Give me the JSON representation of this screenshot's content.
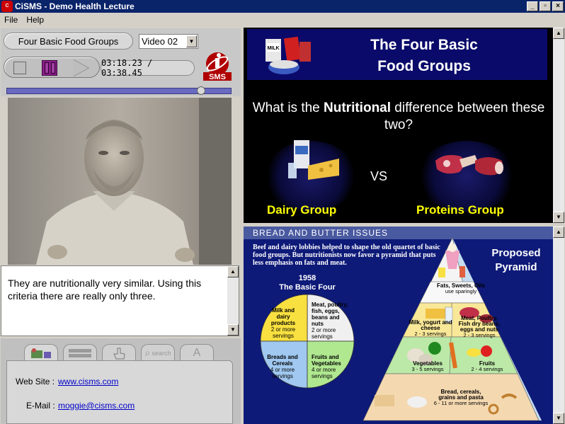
{
  "window": {
    "title": "CiSMS - Demo Health Lecture",
    "logo_text": "CiSMS"
  },
  "menu": [
    {
      "label": "File"
    },
    {
      "label": "Help"
    }
  ],
  "player": {
    "lecture_title": "Four Basic Food Groups",
    "video_select": "Video 02",
    "time": "03:18.23 / 03:38.45",
    "progress": 0.88,
    "logo_text": "SMS"
  },
  "caption": "They are nutritionally very similar. Using this criteria there are really only three.",
  "tabs": [
    {
      "icon": "contact-card-icon",
      "active": true
    },
    {
      "icon": "notes-list-icon",
      "active": false
    },
    {
      "icon": "pointer-hand-icon",
      "active": false
    },
    {
      "icon": "search-icon",
      "label": "search",
      "active": false
    },
    {
      "icon": "font-icon",
      "label": "A",
      "active": false
    }
  ],
  "contact": {
    "website_label": "Web Site :",
    "website": "www.cisms.com",
    "email_label": "E-Mail :",
    "email": "moggie@cisms.com"
  },
  "slide": {
    "title_line1": "The Four Basic",
    "title_line2": "Food Groups",
    "q_pre": "What is the ",
    "q_bold": "Nutritional",
    "q_post": " difference between these two?",
    "vs": "VS",
    "left_group": "Dairy Group",
    "right_group": "Proteins Group"
  },
  "article": {
    "heading": "BREAD AND BUTTER ISSUES",
    "intro": "Beef and dairy lobbies helped to shape the old quartet of basic food groups. But nutritionists now favor a pyramid that puts less emphasis on fats and meat.",
    "basic_four_year": "1958",
    "basic_four_title": "The Basic Four",
    "pyramid_title_1": "Proposed",
    "pyramid_title_2": "Pyramid",
    "pie": [
      {
        "name": "Milk and dairy products",
        "servings": "2 or more servings"
      },
      {
        "name": "Meat, poultry, fish, eggs, beans and nuts",
        "servings": "2 or more servings"
      },
      {
        "name": "Breads and Cereals",
        "servings": "4 or more servings"
      },
      {
        "name": "Fruits and Vegetables",
        "servings": "4 or more servings"
      }
    ],
    "pyramid": [
      {
        "name": "Fats, Sweets, Oils",
        "servings": "use sparingly"
      },
      {
        "name": "Milk, yogurt and cheese",
        "servings": "2 - 3 servings"
      },
      {
        "name": "Meat, Poultry, Fish dry beans, eggs and nuts",
        "servings": "2 - 3 servings"
      },
      {
        "name": "Vegetables",
        "servings": "3 - 5 servings"
      },
      {
        "name": "Fruits",
        "servings": "2 - 4 servings"
      },
      {
        "name": "Bread, cereals, grains and pasta",
        "servings": "6 - 11 or more servings"
      }
    ]
  }
}
